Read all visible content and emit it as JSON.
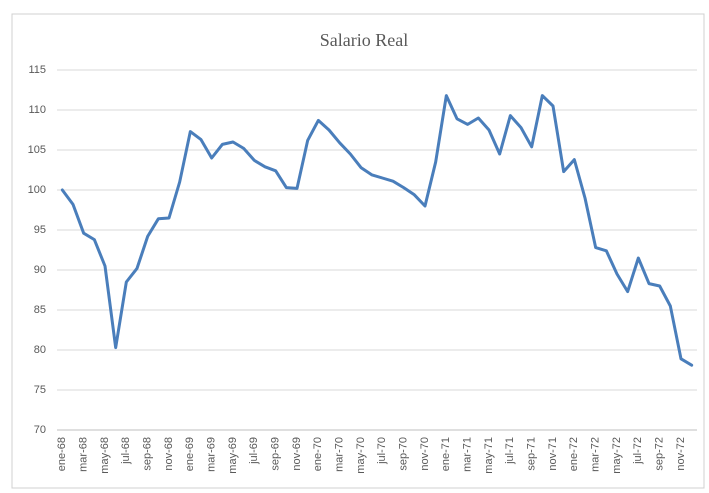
{
  "chart_data": {
    "type": "line",
    "title": "Salario Real",
    "categories": [
      "ene-68",
      null,
      "mar-68",
      null,
      "may-68",
      null,
      "jul-68",
      null,
      "sep-68",
      null,
      "nov-68",
      null,
      "ene-69",
      null,
      "mar-69",
      null,
      "may-69",
      null,
      "jul-69",
      null,
      "sep-69",
      null,
      "nov-69",
      null,
      "ene-70",
      null,
      "mar-70",
      null,
      "may-70",
      null,
      "jul-70",
      null,
      "sep-70",
      null,
      "nov-70",
      null,
      "ene-71",
      null,
      "mar-71",
      null,
      "may-71",
      null,
      "jul-71",
      null,
      "sep-71",
      null,
      "nov-71",
      null,
      "ene-72",
      null,
      "mar-72",
      null,
      "may-72",
      null,
      "jul-72",
      null,
      "sep-72",
      null,
      "nov-72",
      null
    ],
    "values": [
      100,
      98.2,
      94.6,
      93.8,
      90.5,
      80.3,
      88.5,
      90.2,
      94.2,
      96.4,
      96.5,
      101,
      107.3,
      106.3,
      104,
      105.7,
      106,
      105.2,
      103.7,
      102.9,
      102.4,
      100.3,
      100.2,
      106.2,
      108.7,
      107.5,
      105.9,
      104.5,
      102.8,
      101.9,
      101.5,
      101.1,
      100.3,
      99.4,
      98,
      103.5,
      111.8,
      108.9,
      108.2,
      109,
      107.5,
      104.5,
      109.3,
      107.8,
      105.4,
      111.8,
      110.5,
      102.3,
      103.8,
      99,
      92.8,
      92.4,
      89.5,
      87.3,
      91.5,
      88.3,
      88,
      85.5,
      78.9,
      78.1
    ],
    "color": "#4a7ebb",
    "ylim": [
      70,
      115
    ],
    "yticks": [
      70,
      75,
      80,
      85,
      90,
      95,
      100,
      105,
      110,
      115
    ],
    "grid": true
  }
}
